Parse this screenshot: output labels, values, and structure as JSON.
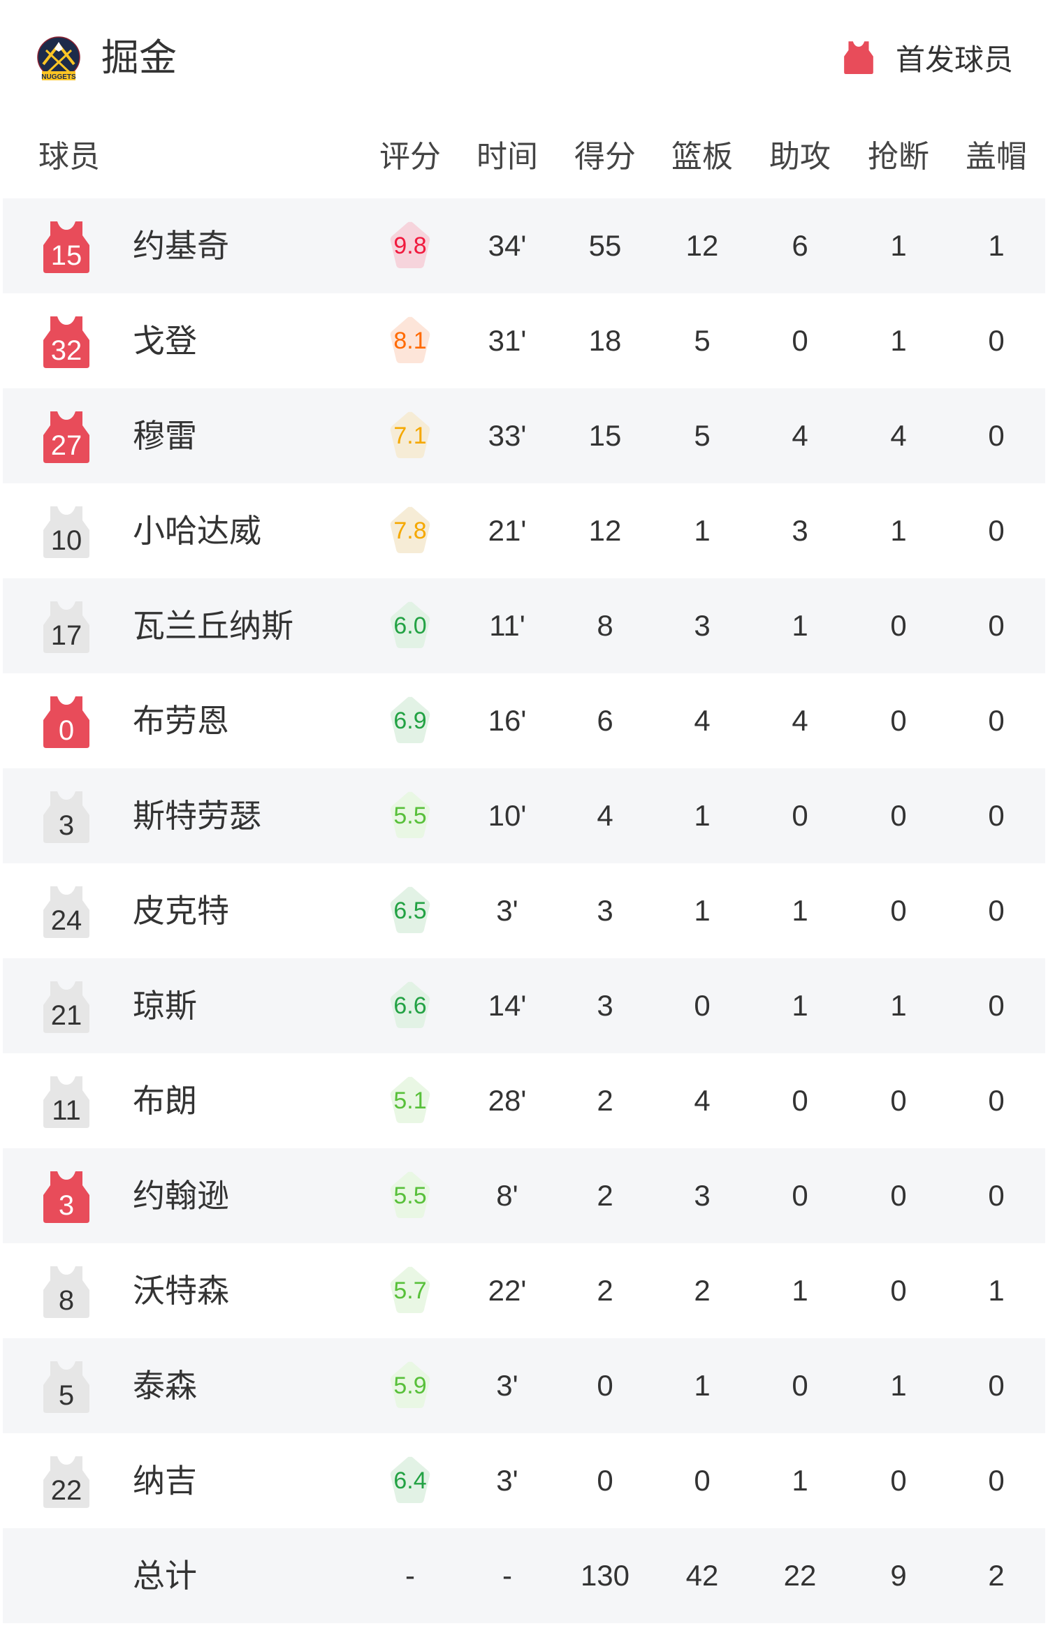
{
  "header": {
    "team_name": "掘金",
    "logo_text": "NUGGETS",
    "legend_label": "首发球员",
    "starter_color": "#e84c5a",
    "bench_color": "#e6e6e6"
  },
  "columns": [
    "球员",
    "评分",
    "时间",
    "得分",
    "篮板",
    "助攻",
    "抢断",
    "盖帽"
  ],
  "players": [
    {
      "number": "15",
      "name": "约基奇",
      "starter": true,
      "rating": "9.8",
      "rating_tier": "red",
      "min": "34'",
      "pts": "55",
      "reb": "12",
      "ast": "6",
      "stl": "1",
      "blk": "1"
    },
    {
      "number": "32",
      "name": "戈登",
      "starter": true,
      "rating": "8.1",
      "rating_tier": "orange",
      "min": "31'",
      "pts": "18",
      "reb": "5",
      "ast": "0",
      "stl": "1",
      "blk": "0"
    },
    {
      "number": "27",
      "name": "穆雷",
      "starter": true,
      "rating": "7.1",
      "rating_tier": "yellow",
      "min": "33'",
      "pts": "15",
      "reb": "5",
      "ast": "4",
      "stl": "4",
      "blk": "0"
    },
    {
      "number": "10",
      "name": "小哈达威",
      "starter": false,
      "rating": "7.8",
      "rating_tier": "yellow",
      "min": "21'",
      "pts": "12",
      "reb": "1",
      "ast": "3",
      "stl": "1",
      "blk": "0"
    },
    {
      "number": "17",
      "name": "瓦兰丘纳斯",
      "starter": false,
      "rating": "6.0",
      "rating_tier": "green",
      "min": "11'",
      "pts": "8",
      "reb": "3",
      "ast": "1",
      "stl": "0",
      "blk": "0"
    },
    {
      "number": "0",
      "name": "布劳恩",
      "starter": true,
      "rating": "6.9",
      "rating_tier": "green",
      "min": "16'",
      "pts": "6",
      "reb": "4",
      "ast": "4",
      "stl": "0",
      "blk": "0"
    },
    {
      "number": "3",
      "name": "斯特劳瑟",
      "starter": false,
      "rating": "5.5",
      "rating_tier": "lightgreen",
      "min": "10'",
      "pts": "4",
      "reb": "1",
      "ast": "0",
      "stl": "0",
      "blk": "0"
    },
    {
      "number": "24",
      "name": "皮克特",
      "starter": false,
      "rating": "6.5",
      "rating_tier": "green",
      "min": "3'",
      "pts": "3",
      "reb": "1",
      "ast": "1",
      "stl": "0",
      "blk": "0"
    },
    {
      "number": "21",
      "name": "琼斯",
      "starter": false,
      "rating": "6.6",
      "rating_tier": "green",
      "min": "14'",
      "pts": "3",
      "reb": "0",
      "ast": "1",
      "stl": "1",
      "blk": "0"
    },
    {
      "number": "11",
      "name": "布朗",
      "starter": false,
      "rating": "5.1",
      "rating_tier": "lightgreen",
      "min": "28'",
      "pts": "2",
      "reb": "4",
      "ast": "0",
      "stl": "0",
      "blk": "0"
    },
    {
      "number": "3",
      "name": "约翰逊",
      "starter": true,
      "rating": "5.5",
      "rating_tier": "lightgreen",
      "min": "8'",
      "pts": "2",
      "reb": "3",
      "ast": "0",
      "stl": "0",
      "blk": "0"
    },
    {
      "number": "8",
      "name": "沃特森",
      "starter": false,
      "rating": "5.7",
      "rating_tier": "lightgreen",
      "min": "22'",
      "pts": "2",
      "reb": "2",
      "ast": "1",
      "stl": "0",
      "blk": "1"
    },
    {
      "number": "5",
      "name": "泰森",
      "starter": false,
      "rating": "5.9",
      "rating_tier": "lightgreen",
      "min": "3'",
      "pts": "0",
      "reb": "1",
      "ast": "0",
      "stl": "1",
      "blk": "0"
    },
    {
      "number": "22",
      "name": "纳吉",
      "starter": false,
      "rating": "6.4",
      "rating_tier": "green",
      "min": "3'",
      "pts": "0",
      "reb": "0",
      "ast": "1",
      "stl": "0",
      "blk": "0"
    }
  ],
  "totals": {
    "name": "总计",
    "rating": "-",
    "min": "-",
    "pts": "130",
    "reb": "42",
    "ast": "22",
    "stl": "9",
    "blk": "2"
  },
  "rating_colors": {
    "red": {
      "bg": "#f6d4dc",
      "fg": "#f0193d"
    },
    "orange": {
      "bg": "#fde5d9",
      "fg": "#ff6a00"
    },
    "yellow": {
      "bg": "#f6ecd6",
      "fg": "#f5a800"
    },
    "green": {
      "bg": "#e2f2e5",
      "fg": "#23a244"
    },
    "lightgreen": {
      "bg": "#e9f7e4",
      "fg": "#58c03a"
    }
  }
}
